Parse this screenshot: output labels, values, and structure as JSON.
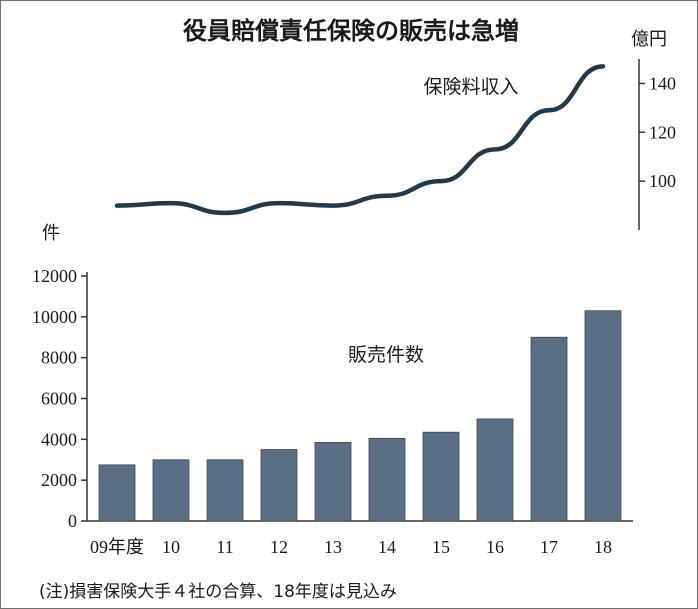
{
  "chart_data": {
    "title": "役員賠償責任保険の販売は急増",
    "type": "bar+line",
    "note": "(注)損害保険大手４社の合算、18年度は見込み",
    "categories": [
      "09年度",
      "10",
      "11",
      "12",
      "13",
      "14",
      "15",
      "16",
      "17",
      "18"
    ],
    "colors": {
      "bar": "#5b6f84",
      "line": "#1e3a4c",
      "axis": "#333333"
    },
    "bars": {
      "name": "販売件数",
      "unit": "件",
      "values": [
        2750,
        3000,
        3000,
        3500,
        3850,
        4050,
        4350,
        5000,
        9000,
        10300
      ],
      "ylim": [
        0,
        12000
      ],
      "ticks": [
        0,
        2000,
        4000,
        6000,
        8000,
        10000,
        12000
      ]
    },
    "line": {
      "name": "保険料収入",
      "unit": "億円",
      "values": [
        90,
        91,
        87,
        91,
        90,
        94,
        100,
        113,
        129,
        147
      ],
      "ylim": [
        80,
        150
      ],
      "ticks": [
        100,
        120,
        140
      ]
    },
    "grid": false
  }
}
